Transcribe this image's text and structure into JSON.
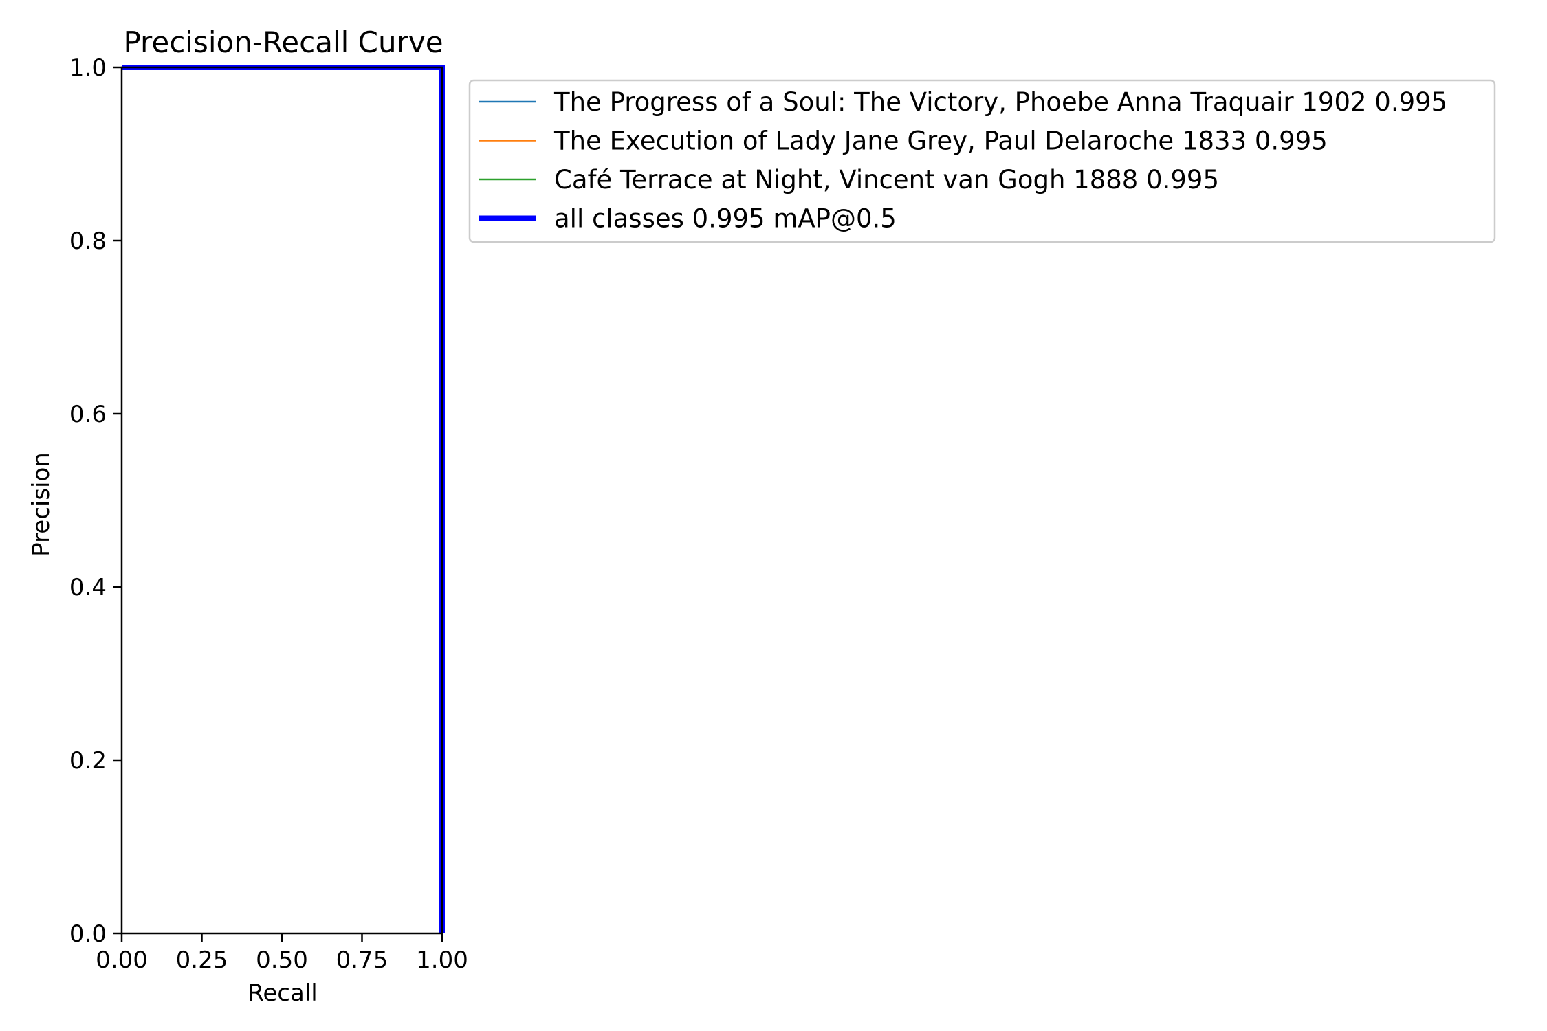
{
  "chart_data": {
    "type": "line",
    "title": "Precision-Recall Curve",
    "xlabel": "Recall",
    "ylabel": "Precision",
    "xlim": [
      0,
      1
    ],
    "ylim": [
      0,
      1
    ],
    "xticks": [
      0,
      0.25,
      0.5,
      0.75,
      1
    ],
    "xtick_labels": [
      "0.00",
      "0.25",
      "0.50",
      "0.75",
      "1.00"
    ],
    "yticks": [
      0,
      0.2,
      0.4,
      0.6,
      0.8,
      1
    ],
    "ytick_labels": [
      "0.0",
      "0.2",
      "0.4",
      "0.6",
      "0.8",
      "1.0"
    ],
    "grid": false,
    "legend_position": "outside right, top",
    "series": [
      {
        "name": "The Progress of a Soul: The Victory, Phoebe Anna Traquair 1902 0.995",
        "color": "#1f77b4",
        "line": "thin",
        "x": [
          0,
          1,
          1
        ],
        "y": [
          1,
          1,
          0
        ]
      },
      {
        "name": "The Execution of Lady Jane Grey, Paul Delaroche 1833 0.995",
        "color": "#ff7f0e",
        "line": "thin",
        "x": [
          0,
          1,
          1
        ],
        "y": [
          1,
          1,
          0
        ]
      },
      {
        "name": "Café Terrace at Night, Vincent van Gogh 1888 0.995",
        "color": "#2ca02c",
        "line": "thin",
        "x": [
          0,
          1,
          1
        ],
        "y": [
          1,
          1,
          0
        ]
      },
      {
        "name": "all classes 0.995 mAP@0.5",
        "color": "#0000ff",
        "line": "thick",
        "x": [
          0,
          1,
          1
        ],
        "y": [
          1,
          1,
          0
        ]
      }
    ]
  }
}
